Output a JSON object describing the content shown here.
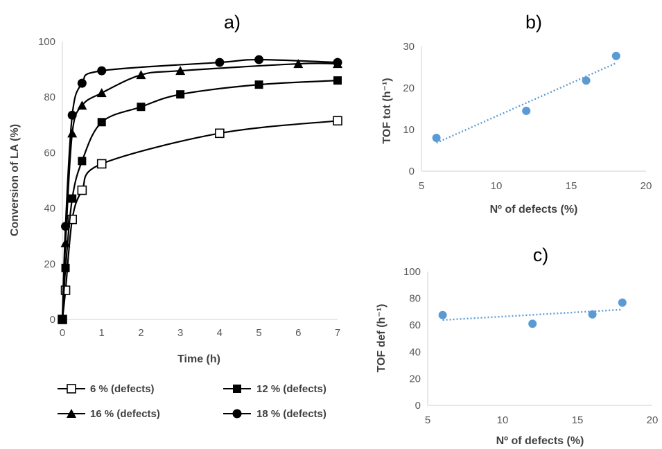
{
  "chart_data": [
    {
      "panel": "a)",
      "type": "line",
      "xlabel": "Time (h)",
      "ylabel": "Conversion of LA (%)",
      "xlim": [
        0,
        7
      ],
      "ylim": [
        0,
        100
      ],
      "xticks": [
        "0",
        "1",
        "2",
        "3",
        "4",
        "5",
        "6",
        "7"
      ],
      "yticks": [
        "0",
        "20",
        "40",
        "60",
        "80",
        "100"
      ],
      "grid": false,
      "legend_position": "bottom",
      "series": [
        {
          "name": "6 % (defects)",
          "marker": "square-open",
          "x": [
            0,
            0.08,
            0.25,
            0.5,
            1,
            4,
            7
          ],
          "y": [
            0,
            10.5,
            36,
            46.5,
            56,
            67,
            71.5
          ]
        },
        {
          "name": "12 % (defects)",
          "marker": "square",
          "x": [
            0,
            0.08,
            0.25,
            0.5,
            1,
            2,
            3,
            5,
            7
          ],
          "y": [
            0,
            18.5,
            43.5,
            57,
            71,
            76.5,
            81,
            84.5,
            86
          ]
        },
        {
          "name": "16 % (defects)",
          "marker": "triangle",
          "x": [
            0,
            0.08,
            0.25,
            0.5,
            1,
            2,
            3,
            6,
            7
          ],
          "y": [
            0,
            27.5,
            67,
            77,
            81.5,
            88,
            89.5,
            92,
            92
          ]
        },
        {
          "name": "18 % (defects)",
          "marker": "circle",
          "x": [
            0,
            0.08,
            0.25,
            0.5,
            1,
            4,
            5,
            7
          ],
          "y": [
            0,
            33.5,
            73.5,
            85,
            89.5,
            92.5,
            93.5,
            92.5
          ]
        }
      ]
    },
    {
      "panel": "b)",
      "type": "scatter",
      "xlabel": "Nº of defects (%)",
      "ylabel": "TOF tot  (h⁻¹)",
      "xlim": [
        5,
        20
      ],
      "ylim": [
        0,
        30
      ],
      "xticks": [
        "5",
        "10",
        "15",
        "20"
      ],
      "yticks": [
        "0",
        "10",
        "20",
        "30"
      ],
      "color": "#5b9bd5",
      "series": [
        {
          "x": [
            6,
            12,
            16,
            18
          ],
          "y": [
            8,
            14.5,
            21.8,
            27.7
          ]
        }
      ],
      "trendline": {
        "x": [
          6,
          18
        ],
        "y": [
          6.8,
          26
        ]
      }
    },
    {
      "panel": "c)",
      "type": "scatter",
      "xlabel": "Nº of defects (%)",
      "ylabel": "TOF def (h⁻¹)",
      "xlim": [
        5,
        20
      ],
      "ylim": [
        0,
        100
      ],
      "xticks": [
        "5",
        "10",
        "15",
        "20"
      ],
      "yticks": [
        "0",
        "20",
        "40",
        "60",
        "80",
        "100"
      ],
      "color": "#5b9bd5",
      "series": [
        {
          "x": [
            6,
            12,
            16,
            18
          ],
          "y": [
            67.5,
            61,
            68,
            76.8
          ]
        }
      ],
      "trendline": {
        "x": [
          6,
          18
        ],
        "y": [
          63.8,
          71.6
        ]
      }
    }
  ]
}
